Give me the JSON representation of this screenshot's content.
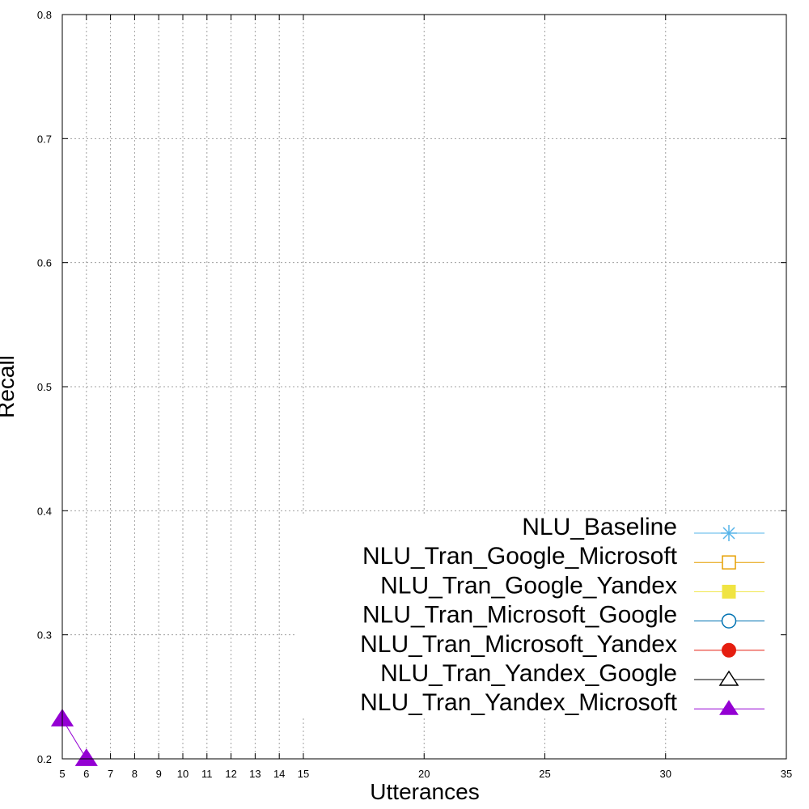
{
  "chart_data": {
    "type": "line",
    "xlabel": "Utterances",
    "ylabel": "Recall",
    "xlim": [
      5,
      35
    ],
    "ylim": [
      0.2,
      0.8
    ],
    "x_ticks": [
      5,
      6,
      7,
      8,
      9,
      10,
      11,
      12,
      13,
      14,
      15,
      20,
      25,
      30,
      35
    ],
    "y_ticks": [
      0.2,
      0.3,
      0.4,
      0.5,
      0.6,
      0.7,
      0.8
    ],
    "grid": true,
    "legend_position": "bottom-right",
    "series": [
      {
        "name": "NLU_Baseline",
        "color": "#56b4e9",
        "marker": "asterisk",
        "x": [],
        "y": []
      },
      {
        "name": "NLU_Tran_Google_Microsoft",
        "color": "#e69f00",
        "marker": "square-open",
        "x": [],
        "y": []
      },
      {
        "name": "NLU_Tran_Google_Yandex",
        "color": "#f0e442",
        "marker": "square-filled",
        "x": [],
        "y": []
      },
      {
        "name": "NLU_Tran_Microsoft_Google",
        "color": "#0072b2",
        "marker": "circle-open",
        "x": [],
        "y": []
      },
      {
        "name": "NLU_Tran_Microsoft_Yandex",
        "color": "#e51e10",
        "marker": "circle-filled",
        "x": [],
        "y": []
      },
      {
        "name": "NLU_Tran_Yandex_Google",
        "color": "#000000",
        "marker": "triangle-open",
        "x": [],
        "y": []
      },
      {
        "name": "NLU_Tran_Yandex_Microsoft",
        "color": "#9400d3",
        "marker": "triangle-filled",
        "x": [
          5,
          6
        ],
        "y": [
          0.232,
          0.2
        ]
      }
    ]
  }
}
